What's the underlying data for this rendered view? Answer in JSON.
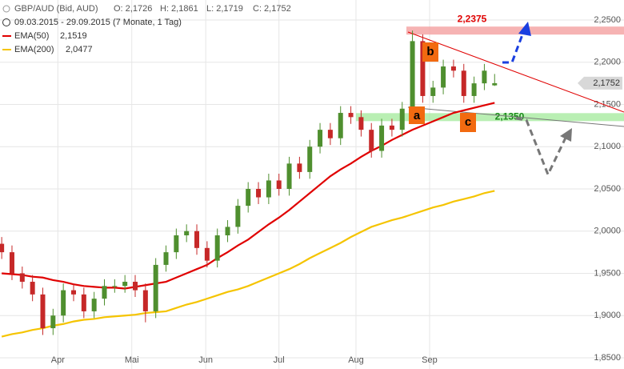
{
  "chart_data": {
    "type": "candlestick",
    "info": {
      "instrument": "GBP/AUD (Bid, AUD)",
      "ohlc": [
        "O: 2,1726",
        "H: 2,1861",
        "L: 2,1719",
        "C: 2,1752"
      ],
      "period": "09.03.2015 - 29.09.2015 (7 Monate, 1 Tag)"
    },
    "x": [
      0,
      3,
      6,
      9,
      12,
      15,
      18,
      21,
      24,
      27,
      30,
      33,
      36,
      39,
      42,
      45,
      48,
      51,
      54,
      57,
      60,
      63,
      66,
      69,
      72,
      75,
      78,
      81,
      84,
      87,
      90,
      93,
      96,
      99,
      102,
      105,
      108,
      111,
      114,
      117,
      120,
      123,
      126,
      129,
      132,
      135,
      138,
      141,
      144
    ],
    "open": [
      1.985,
      1.975,
      1.95,
      1.94,
      1.925,
      1.885,
      1.9,
      1.93,
      1.925,
      1.905,
      1.92,
      1.935,
      1.935,
      1.94,
      1.93,
      1.905,
      1.96,
      1.975,
      1.995,
      2.0,
      1.98,
      1.965,
      1.995,
      2.005,
      2.03,
      2.05,
      2.04,
      2.06,
      2.05,
      2.08,
      2.07,
      2.1,
      2.12,
      2.11,
      2.14,
      2.135,
      2.12,
      2.095,
      2.125,
      2.12,
      2.145,
      2.225,
      2.16,
      2.17,
      2.195,
      2.19,
      2.16,
      2.175,
      2.1726
    ],
    "high": [
      1.993,
      1.983,
      1.958,
      1.948,
      1.933,
      1.908,
      1.938,
      1.938,
      1.933,
      1.928,
      1.943,
      1.943,
      1.948,
      1.948,
      1.938,
      1.968,
      1.983,
      2.003,
      2.008,
      2.008,
      1.988,
      2.003,
      2.013,
      2.038,
      2.058,
      2.058,
      2.068,
      2.068,
      2.088,
      2.088,
      2.108,
      2.128,
      2.128,
      2.148,
      2.148,
      2.143,
      2.128,
      2.133,
      2.133,
      2.153,
      2.2375,
      2.233,
      2.178,
      2.203,
      2.203,
      2.198,
      2.183,
      2.198,
      2.1861
    ],
    "low": [
      1.967,
      1.942,
      1.932,
      1.917,
      1.877,
      1.877,
      1.892,
      1.917,
      1.897,
      1.897,
      1.912,
      1.927,
      1.927,
      1.922,
      1.892,
      1.897,
      1.952,
      1.967,
      1.987,
      1.972,
      1.957,
      1.957,
      1.987,
      1.997,
      2.022,
      2.032,
      2.032,
      2.042,
      2.042,
      2.062,
      2.062,
      2.092,
      2.102,
      2.102,
      2.127,
      2.112,
      2.087,
      2.087,
      2.112,
      2.112,
      2.137,
      2.152,
      2.152,
      2.162,
      2.182,
      2.152,
      2.152,
      2.167,
      2.1719
    ],
    "close": [
      1.975,
      1.95,
      1.94,
      1.925,
      1.885,
      1.9,
      1.93,
      1.925,
      1.905,
      1.92,
      1.935,
      1.935,
      1.94,
      1.93,
      1.905,
      1.96,
      1.975,
      1.995,
      2.0,
      1.98,
      1.965,
      1.995,
      2.005,
      2.03,
      2.05,
      2.04,
      2.06,
      2.05,
      2.08,
      2.07,
      2.1,
      2.12,
      2.11,
      2.14,
      2.135,
      2.12,
      2.095,
      2.125,
      2.12,
      2.145,
      2.225,
      2.16,
      2.17,
      2.195,
      2.19,
      2.16,
      2.175,
      2.19,
      2.1752
    ],
    "close_label": "2,1752",
    "up_color": "#4f8f2f",
    "down_color": "#c62828",
    "series": [
      {
        "name": "EMA(50)",
        "last_label": "2,1519",
        "color": "#e00000",
        "values": [
          1.95,
          1.949,
          1.948,
          1.946,
          1.945,
          1.942,
          1.94,
          1.937,
          1.935,
          1.934,
          1.933,
          1.933,
          1.932,
          1.934,
          1.936,
          1.938,
          1.94,
          1.945,
          1.95,
          1.955,
          1.96,
          1.968,
          1.975,
          1.983,
          1.99,
          1.999,
          2.008,
          2.016,
          2.025,
          2.035,
          2.045,
          2.055,
          2.065,
          2.073,
          2.08,
          2.088,
          2.095,
          2.101,
          2.108,
          2.114,
          2.12,
          2.125,
          2.13,
          2.135,
          2.14,
          2.143,
          2.146,
          2.149,
          2.1519
        ]
      },
      {
        "name": "EMA(200)",
        "last_label": "2,0477",
        "color": "#f5c400",
        "values": [
          1.875,
          1.878,
          1.88,
          1.883,
          1.885,
          1.888,
          1.89,
          1.893,
          1.895,
          1.896,
          1.898,
          1.899,
          1.9,
          1.901,
          1.903,
          1.904,
          1.905,
          1.909,
          1.913,
          1.916,
          1.92,
          1.924,
          1.928,
          1.931,
          1.935,
          1.94,
          1.945,
          1.95,
          1.955,
          1.961,
          1.968,
          1.974,
          1.98,
          1.986,
          1.993,
          1.999,
          2.005,
          2.009,
          2.013,
          2.016,
          2.02,
          2.024,
          2.028,
          2.031,
          2.035,
          2.038,
          2.041,
          2.045,
          2.0477
        ]
      }
    ],
    "levels": [
      {
        "value": 2.2375,
        "label": "2,2375",
        "color": "#f4a0a0",
        "text_color": "#e00000"
      },
      {
        "value": 2.135,
        "label": "2,1350",
        "color": "#a8eba0",
        "text_color": "#1a8a1a"
      }
    ],
    "annotations": [
      "a",
      "b",
      "c"
    ],
    "xlim": [
      -0.5,
      181.8
    ],
    "xticks": [
      {
        "value": 16.4,
        "label": "Apr"
      },
      {
        "value": 38,
        "label": "Mai"
      },
      {
        "value": 59.6,
        "label": "Jun"
      },
      {
        "value": 81,
        "label": "Jul"
      },
      {
        "value": 103.5,
        "label": "Aug"
      },
      {
        "value": 125,
        "label": "Sep"
      }
    ],
    "ylim": [
      1.8367,
      2.2737
    ],
    "yticks": [
      {
        "value": 1.85,
        "label": "1,8500"
      },
      {
        "value": 1.9,
        "label": "1,9000"
      },
      {
        "value": 1.95,
        "label": "1,9500"
      },
      {
        "value": 2.0,
        "label": "2,0000"
      },
      {
        "value": 2.05,
        "label": "2,0500"
      },
      {
        "value": 2.1,
        "label": "2,1000"
      },
      {
        "value": 2.15,
        "label": "2,1500"
      },
      {
        "value": 2.2,
        "label": "2,2000"
      },
      {
        "value": 2.25,
        "label": "2,2500"
      }
    ],
    "grid": true
  }
}
